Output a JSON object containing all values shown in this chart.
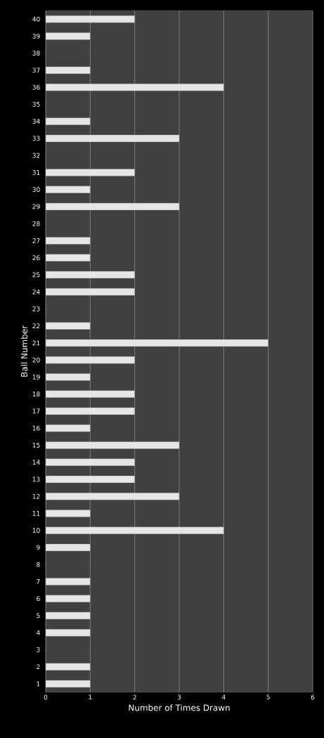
{
  "chart_data": {
    "type": "bar",
    "orientation": "horizontal",
    "xlabel": "Number of Times Drawn",
    "ylabel": "Ball Number",
    "categories": [
      "40",
      "39",
      "38",
      "37",
      "36",
      "35",
      "34",
      "33",
      "32",
      "31",
      "30",
      "29",
      "28",
      "27",
      "26",
      "25",
      "24",
      "23",
      "22",
      "21",
      "20",
      "19",
      "18",
      "17",
      "16",
      "15",
      "14",
      "13",
      "12",
      "11",
      "10",
      "9",
      "8",
      "7",
      "6",
      "5",
      "4",
      "3",
      "2",
      "1"
    ],
    "values": [
      2,
      1,
      0,
      1,
      4,
      0,
      1,
      3,
      0,
      2,
      1,
      3,
      0,
      1,
      1,
      2,
      2,
      0,
      1,
      5,
      2,
      1,
      2,
      2,
      1,
      3,
      2,
      2,
      3,
      1,
      4,
      1,
      0,
      1,
      1,
      1,
      1,
      0,
      1,
      1
    ],
    "color": "#e6e6e6",
    "xlim": [
      0,
      6
    ],
    "xticks": [
      0,
      1,
      2,
      3,
      4,
      5,
      6
    ],
    "grid": "x"
  }
}
